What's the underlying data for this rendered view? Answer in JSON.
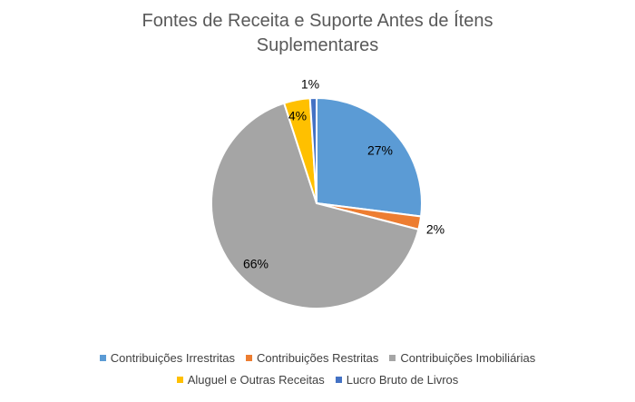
{
  "chart_data": {
    "type": "pie",
    "title_line1": "Fontes de Receita e Suporte Antes de Ítens",
    "title_line2": "Suplementares",
    "slices": [
      {
        "label": "Contribuições Irrestritas",
        "value": 27,
        "data_label": "27%",
        "color": "#5B9BD5"
      },
      {
        "label": "Contribuições Restritas",
        "value": 2,
        "data_label": "2%",
        "color": "#ED7D31"
      },
      {
        "label": "Contribuições Imobiliárias",
        "value": 66,
        "data_label": "66%",
        "color": "#A5A5A5"
      },
      {
        "label": "Aluguel e Outras Receitas",
        "value": 4,
        "data_label": "4%",
        "color": "#FFC000"
      },
      {
        "label": "Lucro Bruto de Livros",
        "value": 1,
        "data_label": "1%",
        "color": "#4472C4"
      }
    ],
    "legend_position": "bottom"
  }
}
